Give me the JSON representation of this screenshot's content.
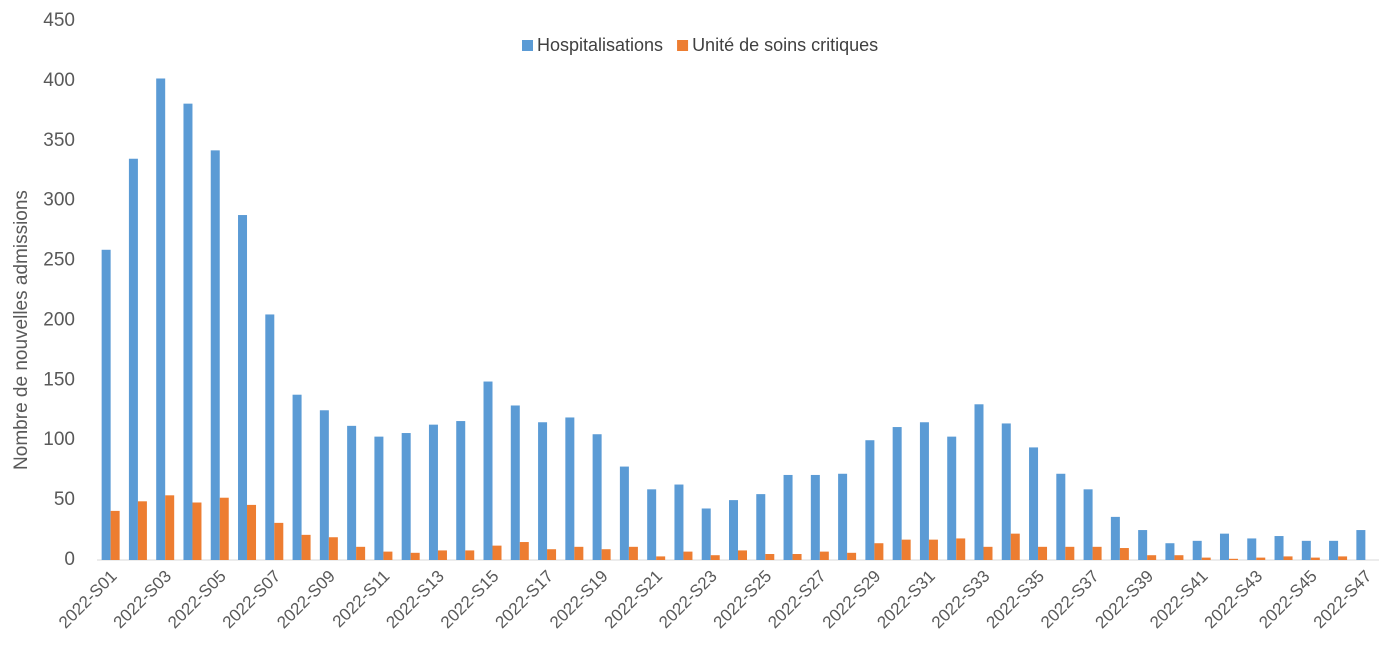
{
  "chart_data": {
    "type": "bar",
    "y_label": "Nombre de nouvelles admissions",
    "categories": [
      "2022-S01",
      null,
      "2022-S03",
      null,
      "2022-S05",
      null,
      "2022-S07",
      null,
      "2022-S09",
      null,
      "2022-S11",
      null,
      "2022-S13",
      null,
      "2022-S15",
      null,
      "2022-S17",
      null,
      "2022-S19",
      null,
      "2022-S21",
      null,
      "2022-S23",
      null,
      "2022-S25",
      null,
      "2022-S27",
      null,
      "2022-S29",
      null,
      "2022-S31",
      null,
      "2022-S33",
      null,
      "2022-S35",
      null,
      "2022-S37",
      null,
      "2022-S39",
      null,
      "2022-S41",
      null,
      "2022-S43",
      null,
      "2022-S45",
      null,
      "2022-S47"
    ],
    "series": [
      {
        "name": "Hospitalisations",
        "color": "#5b9bd5",
        "values": [
          259,
          335,
          402,
          381,
          342,
          288,
          205,
          138,
          125,
          112,
          103,
          106,
          113,
          116,
          149,
          129,
          115,
          119,
          105,
          78,
          59,
          63,
          43,
          50,
          55,
          71,
          71,
          72,
          100,
          111,
          115,
          103,
          130,
          114,
          94,
          72,
          59,
          36,
          25,
          14,
          16,
          22,
          18,
          20,
          16,
          16,
          25
        ]
      },
      {
        "name": "Unité de soins critiques",
        "color": "#ed7d31",
        "values": [
          41,
          49,
          54,
          48,
          52,
          46,
          31,
          21,
          19,
          11,
          7,
          6,
          8,
          8,
          12,
          15,
          9,
          11,
          9,
          11,
          3,
          7,
          4,
          8,
          5,
          5,
          7,
          6,
          14,
          17,
          17,
          18,
          11,
          22,
          11,
          11,
          11,
          10,
          4,
          4,
          2,
          1,
          2,
          3,
          2,
          3,
          0
        ]
      }
    ],
    "ylim": [
      0,
      450
    ],
    "yticks": [
      0,
      50,
      100,
      150,
      200,
      250,
      300,
      350,
      400,
      450
    ],
    "legend": "top"
  }
}
